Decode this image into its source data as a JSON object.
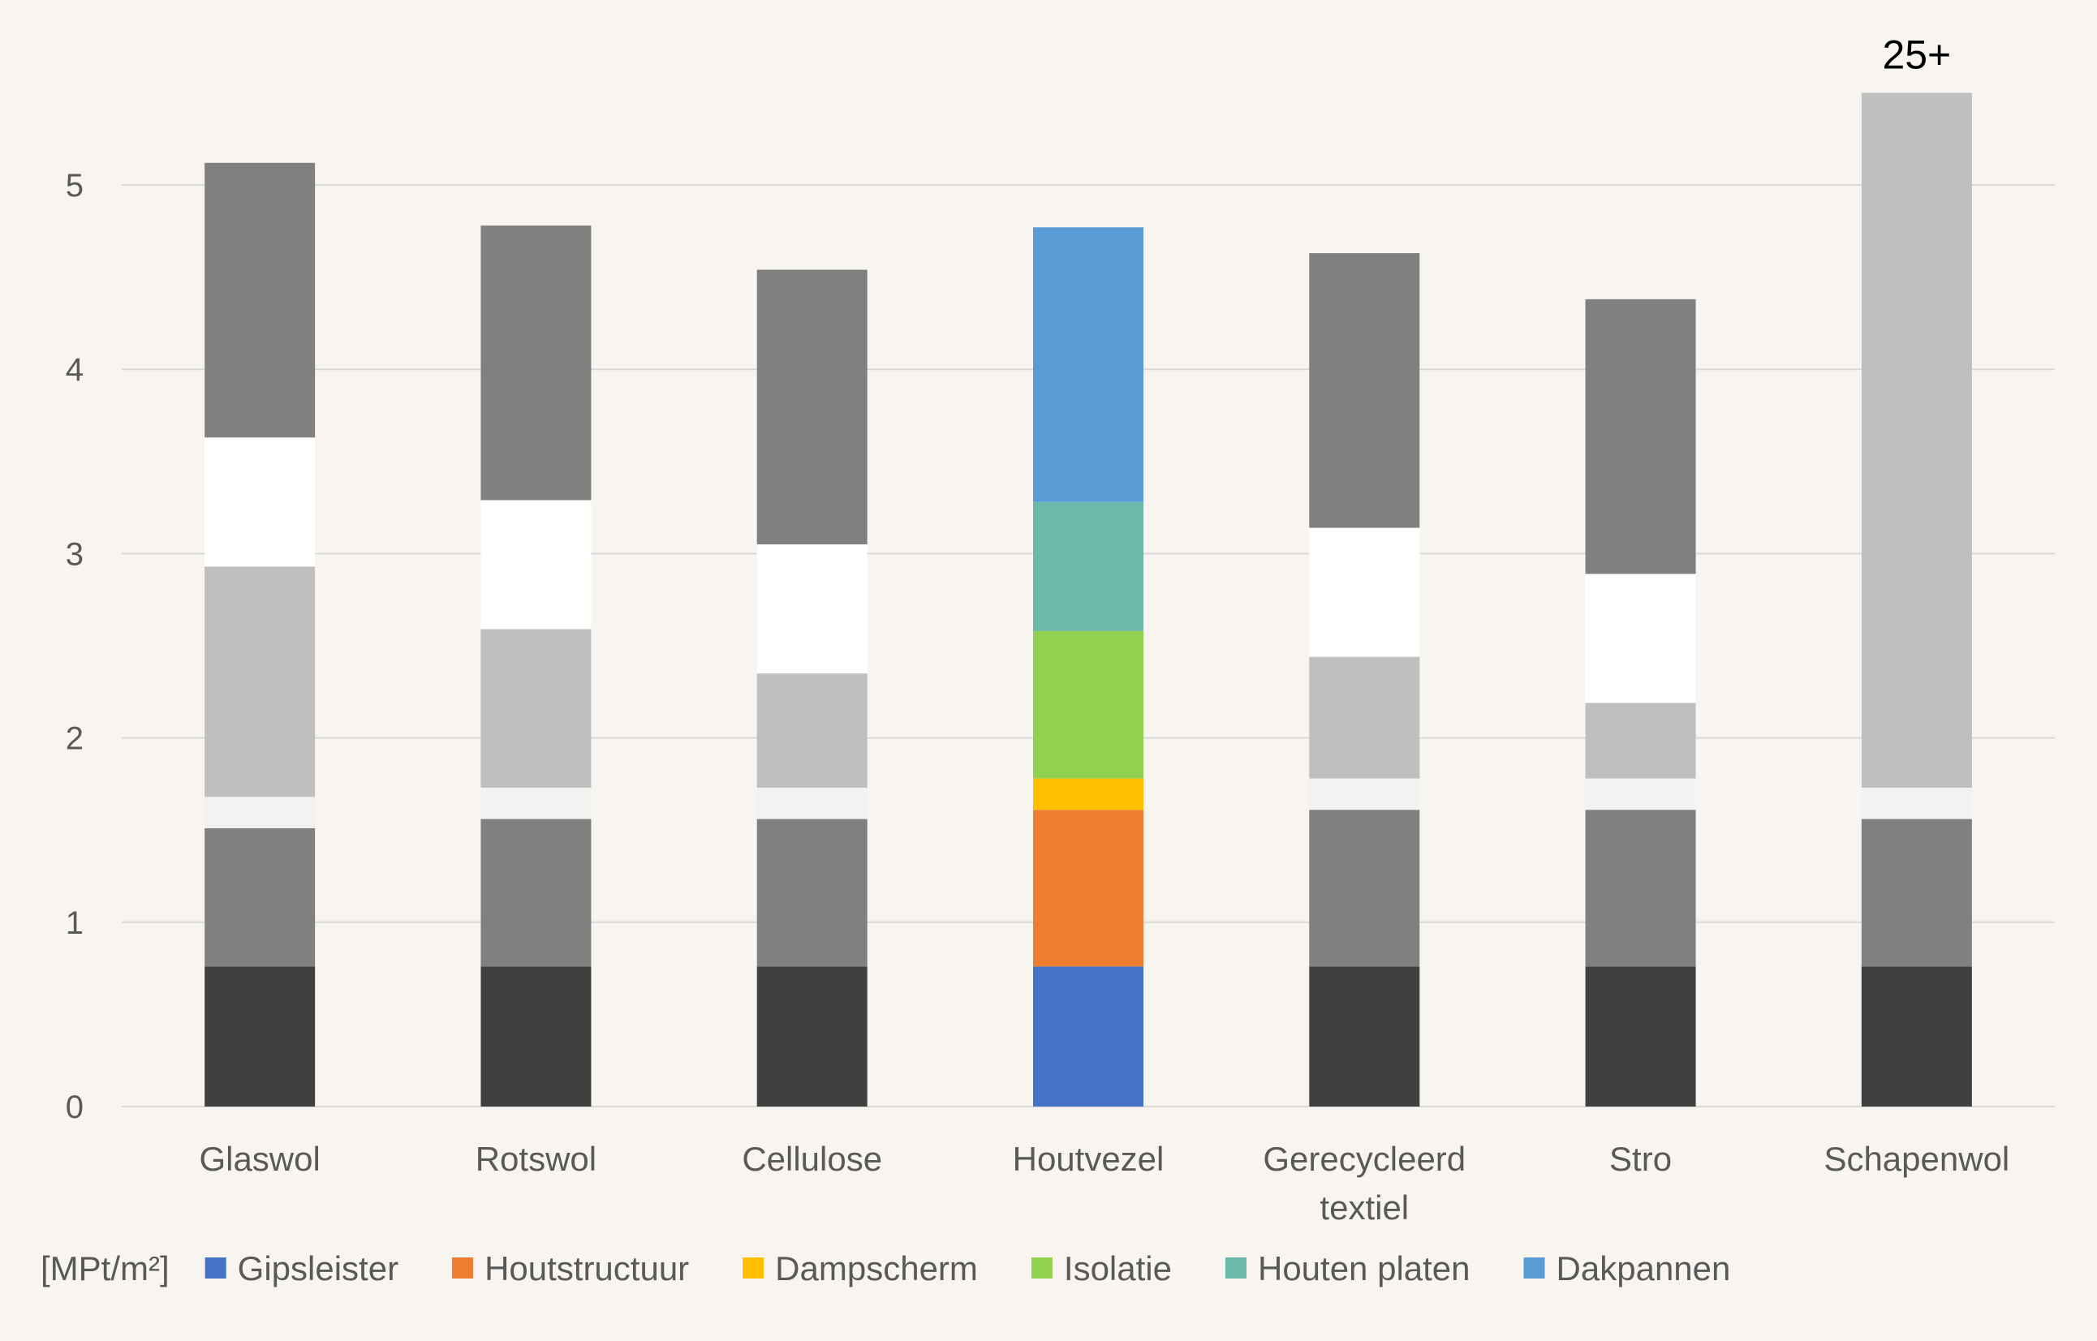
{
  "chart_data": {
    "type": "bar",
    "stacked": true,
    "unit_label": "[MPt/m²]",
    "ylim": [
      0,
      5.5
    ],
    "yticks": [
      0,
      1,
      2,
      3,
      4,
      5
    ],
    "grid": true,
    "legend_position": "bottom",
    "categories": [
      "Glaswol",
      "Rotswol",
      "Cellulose",
      "Houtvezel",
      "Gerecycleerd textiel",
      "Stro",
      "Schapenwol"
    ],
    "category_lines": [
      [
        "Glaswol"
      ],
      [
        "Rotswol"
      ],
      [
        "Cellulose"
      ],
      [
        "Houtvezel"
      ],
      [
        "Gerecycleerd",
        "textiel"
      ],
      [
        "Stro"
      ],
      [
        "Schapenwol"
      ]
    ],
    "highlight_category": "Houtvezel",
    "series": [
      {
        "name": "Gipsleister",
        "color": "#4472c4",
        "muted_color": "#404040",
        "values": [
          0.76,
          0.76,
          0.76,
          0.76,
          0.76,
          0.76,
          0.76
        ]
      },
      {
        "name": "Houtstructuur",
        "color": "#ed7d31",
        "muted_color": "#808080",
        "values": [
          0.75,
          0.8,
          0.8,
          0.85,
          0.85,
          0.85,
          0.8
        ]
      },
      {
        "name": "Dampscherm",
        "color": "#ffc000",
        "muted_color": "#f2f2f2",
        "values": [
          0.17,
          0.17,
          0.17,
          0.17,
          0.17,
          0.17,
          0.17
        ]
      },
      {
        "name": "Isolatie",
        "color": "#92d050",
        "muted_color": "#bfbfbf",
        "values": [
          1.25,
          0.86,
          0.62,
          0.8,
          0.66,
          0.41,
          3.77
        ]
      },
      {
        "name": "Houten platen",
        "color": "#6cb8aa",
        "muted_color": "#ffffff",
        "values": [
          0.7,
          0.7,
          0.7,
          0.7,
          0.7,
          0.7,
          0
        ]
      },
      {
        "name": "Dakpannen",
        "color": "#5b9bd5",
        "muted_color": "#808080",
        "values": [
          1.49,
          1.49,
          1.49,
          1.49,
          1.49,
          1.49,
          0
        ]
      }
    ],
    "annotations": [
      {
        "category": "Schapenwol",
        "text": "25+"
      }
    ]
  }
}
